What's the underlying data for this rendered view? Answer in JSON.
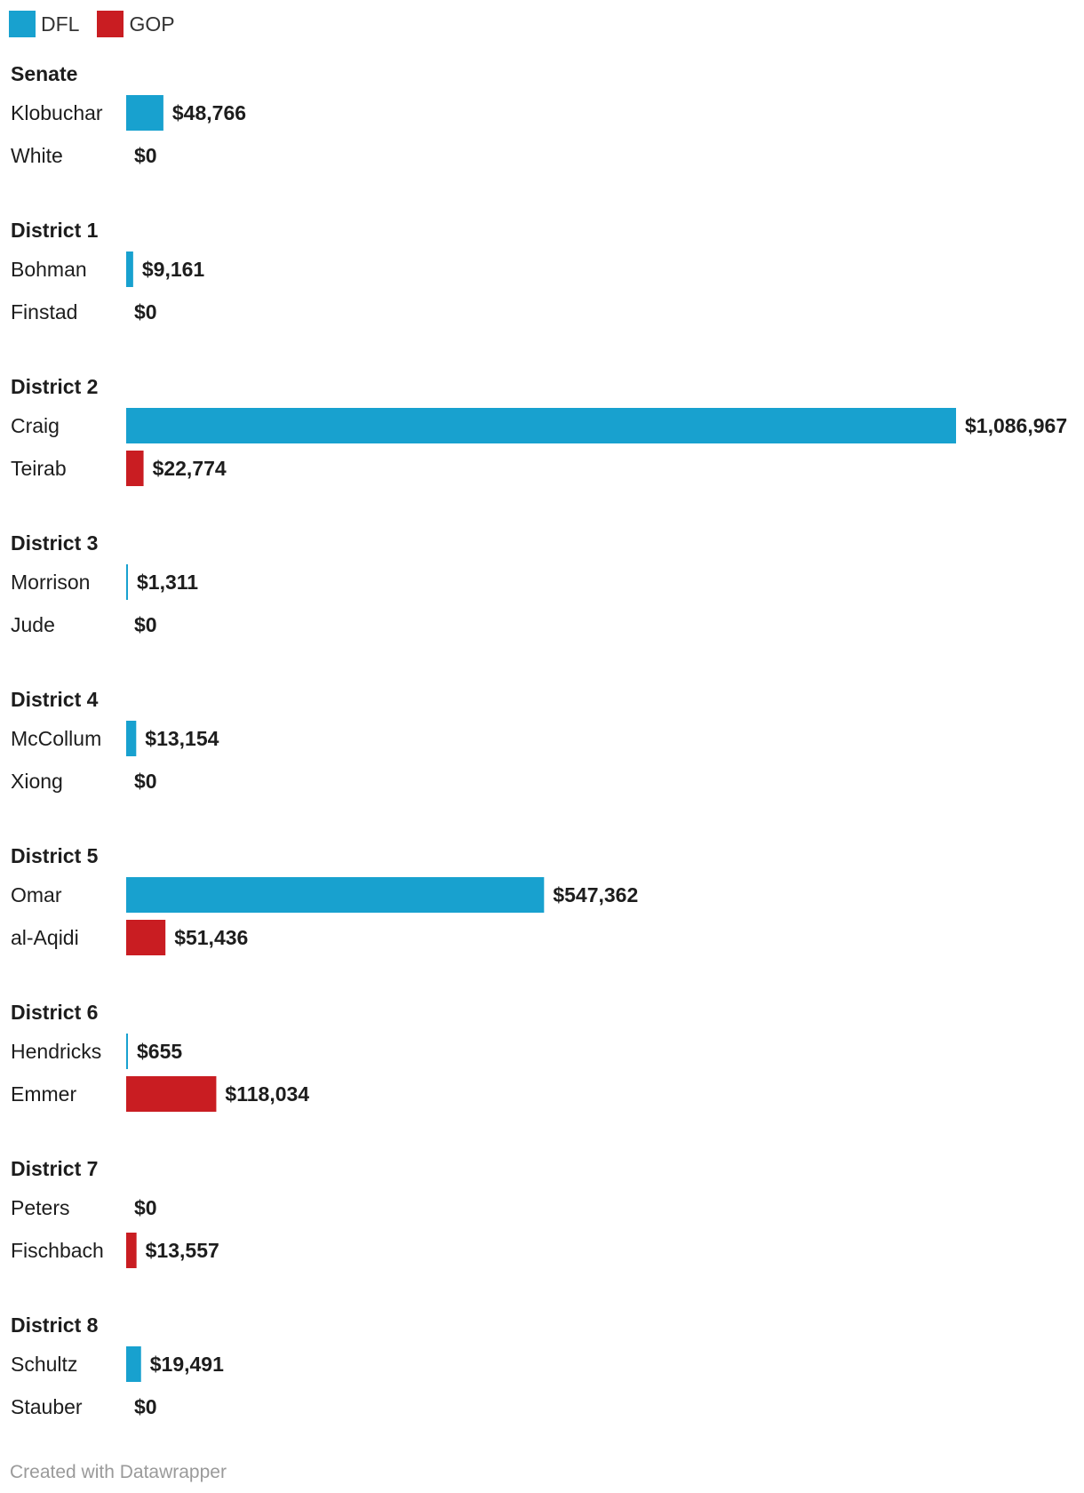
{
  "legend": [
    {
      "label": "DFL",
      "color": "#18a1cf"
    },
    {
      "label": "GOP",
      "color": "#c91d22"
    }
  ],
  "footer": {
    "text": "Created with Datawrapper"
  },
  "chart_data": {
    "type": "bar",
    "orientation": "horizontal",
    "value_prefix": "$",
    "grid": false,
    "legend_position": "top-left",
    "xlim": [
      0,
      1086967
    ],
    "groups": [
      {
        "title": "Senate",
        "rows": [
          {
            "name": "Klobuchar",
            "party": "DFL",
            "value": 48766,
            "label": "$48,766"
          },
          {
            "name": "White",
            "party": "GOP",
            "value": 0,
            "label": "$0"
          }
        ]
      },
      {
        "title": "District 1",
        "rows": [
          {
            "name": "Bohman",
            "party": "DFL",
            "value": 9161,
            "label": "$9,161"
          },
          {
            "name": "Finstad",
            "party": "GOP",
            "value": 0,
            "label": "$0"
          }
        ]
      },
      {
        "title": "District 2",
        "rows": [
          {
            "name": "Craig",
            "party": "DFL",
            "value": 1086967,
            "label": "$1,086,967"
          },
          {
            "name": "Teirab",
            "party": "GOP",
            "value": 22774,
            "label": "$22,774"
          }
        ]
      },
      {
        "title": "District 3",
        "rows": [
          {
            "name": "Morrison",
            "party": "DFL",
            "value": 1311,
            "label": "$1,311"
          },
          {
            "name": "Jude",
            "party": "GOP",
            "value": 0,
            "label": "$0"
          }
        ]
      },
      {
        "title": "District 4",
        "rows": [
          {
            "name": "McCollum",
            "party": "DFL",
            "value": 13154,
            "label": "$13,154"
          },
          {
            "name": "Xiong",
            "party": "GOP",
            "value": 0,
            "label": "$0"
          }
        ]
      },
      {
        "title": "District 5",
        "rows": [
          {
            "name": "Omar",
            "party": "DFL",
            "value": 547362,
            "label": "$547,362"
          },
          {
            "name": "al-Aqidi",
            "party": "GOP",
            "value": 51436,
            "label": "$51,436"
          }
        ]
      },
      {
        "title": "District 6",
        "rows": [
          {
            "name": "Hendricks",
            "party": "DFL",
            "value": 655,
            "label": "$655"
          },
          {
            "name": "Emmer",
            "party": "GOP",
            "value": 118034,
            "label": "$118,034"
          }
        ]
      },
      {
        "title": "District 7",
        "rows": [
          {
            "name": "Peters",
            "party": "DFL",
            "value": 0,
            "label": "$0"
          },
          {
            "name": "Fischbach",
            "party": "GOP",
            "value": 13557,
            "label": "$13,557"
          }
        ]
      },
      {
        "title": "District 8",
        "rows": [
          {
            "name": "Schultz",
            "party": "DFL",
            "value": 19491,
            "label": "$19,491"
          },
          {
            "name": "Stauber",
            "party": "GOP",
            "value": 0,
            "label": "$0"
          }
        ]
      }
    ]
  }
}
